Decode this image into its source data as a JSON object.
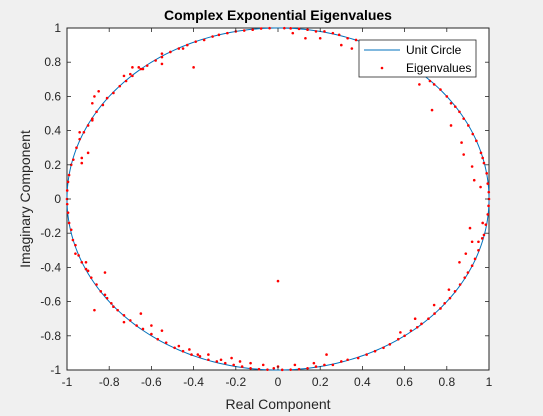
{
  "chart_data": {
    "type": "scatter",
    "title": "Complex Exponential Eigenvalues",
    "xlabel": "Real Component",
    "ylabel": "Imaginary Component",
    "xlim": [
      -1,
      1
    ],
    "ylim": [
      -1,
      1
    ],
    "xticks": [
      -1,
      -0.8,
      -0.6,
      -0.4,
      -0.2,
      0,
      0.2,
      0.4,
      0.6,
      0.8,
      1
    ],
    "yticks": [
      -1,
      -0.8,
      -0.6,
      -0.4,
      -0.2,
      0,
      0.2,
      0.4,
      0.6,
      0.8,
      1
    ],
    "xtick_labels": [
      "-1",
      "-0.8",
      "-0.6",
      "-0.4",
      "-0.2",
      "0",
      "0.2",
      "0.4",
      "0.6",
      "0.8",
      "1"
    ],
    "ytick_labels": [
      "-1",
      "-0.8",
      "-0.6",
      "-0.4",
      "-0.2",
      "0",
      "0.2",
      "0.4",
      "0.6",
      "0.8",
      "1"
    ],
    "grid": false,
    "legend_position": "top-right",
    "series": [
      {
        "name": "Unit Circle",
        "kind": "line",
        "color": "#0072BD",
        "function": "unit circle x=cos(t), y=sin(t)"
      },
      {
        "name": "Eigenvalues",
        "kind": "scatter",
        "color": "#FF0000",
        "points": [
          [
            1.0,
            0.0
          ],
          [
            0.999,
            0.04
          ],
          [
            0.998,
            -0.04
          ],
          [
            0.994,
            0.09
          ],
          [
            0.994,
            -0.09
          ],
          [
            0.989,
            0.15
          ],
          [
            0.985,
            -0.15
          ],
          [
            0.976,
            0.21
          ],
          [
            0.976,
            -0.21
          ],
          [
            0.97,
            0.24
          ],
          [
            0.968,
            -0.23
          ],
          [
            0.962,
            0.27
          ],
          [
            0.95,
            -0.3
          ],
          [
            0.94,
            0.34
          ],
          [
            0.934,
            -0.35
          ],
          [
            0.923,
            0.38
          ],
          [
            0.92,
            -0.39
          ],
          [
            0.902,
            0.43
          ],
          [
            0.9,
            -0.43
          ],
          [
            0.88,
            0.47
          ],
          [
            0.885,
            -0.46
          ],
          [
            0.86,
            0.51
          ],
          [
            0.863,
            -0.5
          ],
          [
            0.84,
            0.54
          ],
          [
            0.839,
            -0.54
          ],
          [
            0.82,
            0.56
          ],
          [
            0.815,
            -0.58
          ],
          [
            0.8,
            0.6
          ],
          [
            0.79,
            -0.61
          ],
          [
            0.77,
            0.64
          ],
          [
            0.77,
            -0.64
          ],
          [
            0.74,
            0.67
          ],
          [
            0.742,
            -0.67
          ],
          [
            0.72,
            0.69
          ],
          [
            0.713,
            -0.7
          ],
          [
            0.69,
            0.72
          ],
          [
            0.68,
            -0.73
          ],
          [
            0.66,
            0.75
          ],
          [
            0.66,
            -0.75
          ],
          [
            0.62,
            0.78
          ],
          [
            0.63,
            -0.77
          ],
          [
            0.59,
            0.81
          ],
          [
            0.6,
            -0.8
          ],
          [
            0.55,
            0.83
          ],
          [
            0.57,
            -0.82
          ],
          [
            0.52,
            0.85
          ],
          [
            0.53,
            -0.85
          ],
          [
            0.48,
            0.88
          ],
          [
            0.5,
            -0.87
          ],
          [
            0.44,
            0.9
          ],
          [
            0.46,
            -0.89
          ],
          [
            0.4,
            0.92
          ],
          [
            0.42,
            -0.91
          ],
          [
            0.37,
            0.93
          ],
          [
            0.38,
            -0.93
          ],
          [
            0.33,
            0.94
          ],
          [
            0.33,
            -0.94
          ],
          [
            0.29,
            0.96
          ],
          [
            0.3,
            -0.95
          ],
          [
            0.26,
            0.97
          ],
          [
            0.26,
            -0.97
          ],
          [
            0.22,
            0.98
          ],
          [
            0.22,
            -0.97
          ],
          [
            0.18,
            0.98
          ],
          [
            0.18,
            -0.98
          ],
          [
            0.14,
            0.99
          ],
          [
            0.14,
            -0.99
          ],
          [
            0.1,
            0.995
          ],
          [
            0.1,
            -0.995
          ],
          [
            0.06,
            0.998
          ],
          [
            0.06,
            -0.998
          ],
          [
            0.03,
            0.999
          ],
          [
            0.02,
            -0.999
          ],
          [
            -1.0,
            0.0
          ],
          [
            -0.999,
            0.05
          ],
          [
            -0.999,
            -0.03
          ],
          [
            -0.995,
            0.1
          ],
          [
            -0.995,
            -0.08
          ],
          [
            -0.99,
            0.14
          ],
          [
            -0.99,
            -0.14
          ],
          [
            -0.98,
            0.2
          ],
          [
            -0.98,
            -0.18
          ],
          [
            -0.97,
            0.23
          ],
          [
            -0.972,
            -0.24
          ],
          [
            -0.955,
            0.3
          ],
          [
            -0.96,
            -0.27
          ],
          [
            -0.94,
            0.35
          ],
          [
            -0.945,
            -0.33
          ],
          [
            -0.92,
            0.39
          ],
          [
            -0.93,
            -0.37
          ],
          [
            -0.9,
            0.43
          ],
          [
            -0.91,
            -0.41
          ],
          [
            -0.88,
            0.47
          ],
          [
            -0.885,
            -0.46
          ],
          [
            -0.86,
            0.51
          ],
          [
            -0.86,
            -0.5
          ],
          [
            -0.83,
            0.55
          ],
          [
            -0.84,
            -0.54
          ],
          [
            -0.81,
            0.59
          ],
          [
            -0.81,
            -0.58
          ],
          [
            -0.78,
            0.62
          ],
          [
            -0.79,
            -0.61
          ],
          [
            -0.75,
            0.66
          ],
          [
            -0.76,
            -0.65
          ],
          [
            -0.72,
            0.69
          ],
          [
            -0.73,
            -0.68
          ],
          [
            -0.69,
            0.72
          ],
          [
            -0.7,
            -0.71
          ],
          [
            -0.65,
            0.76
          ],
          [
            -0.67,
            -0.74
          ],
          [
            -0.62,
            0.78
          ],
          [
            -0.64,
            -0.76
          ],
          [
            -0.58,
            0.81
          ],
          [
            -0.6,
            -0.79
          ],
          [
            -0.55,
            0.83
          ],
          [
            -0.57,
            -0.82
          ],
          [
            -0.51,
            0.86
          ],
          [
            -0.53,
            -0.84
          ],
          [
            -0.47,
            0.88
          ],
          [
            -0.49,
            -0.87
          ],
          [
            -0.43,
            0.9
          ],
          [
            -0.45,
            -0.89
          ],
          [
            -0.39,
            0.92
          ],
          [
            -0.41,
            -0.91
          ],
          [
            -0.35,
            0.93
          ],
          [
            -0.37,
            -0.92
          ],
          [
            -0.31,
            0.95
          ],
          [
            -0.33,
            -0.94
          ],
          [
            -0.28,
            0.96
          ],
          [
            -0.29,
            -0.95
          ],
          [
            -0.24,
            0.97
          ],
          [
            -0.25,
            -0.96
          ],
          [
            -0.2,
            0.98
          ],
          [
            -0.21,
            -0.97
          ],
          [
            -0.16,
            0.985
          ],
          [
            -0.17,
            -0.98
          ],
          [
            -0.12,
            0.99
          ],
          [
            -0.13,
            -0.99
          ],
          [
            -0.08,
            0.997
          ],
          [
            -0.09,
            -0.995
          ],
          [
            -0.04,
            0.999
          ],
          [
            -0.05,
            -0.998
          ],
          [
            -0.94,
            0.39
          ],
          [
            -0.93,
            0.24
          ],
          [
            -0.96,
            -0.32
          ],
          [
            -0.91,
            -0.37
          ],
          [
            -0.88,
            0.56
          ],
          [
            -0.87,
            0.6
          ],
          [
            -0.85,
            0.63
          ],
          [
            -0.87,
            -0.65
          ],
          [
            -0.88,
            0.46
          ],
          [
            -0.9,
            0.27
          ],
          [
            -0.93,
            0.21
          ],
          [
            -0.9,
            -0.42
          ],
          [
            -0.73,
            0.72
          ],
          [
            -0.73,
            -0.72
          ],
          [
            -0.7,
            0.73
          ],
          [
            -0.69,
            0.77
          ],
          [
            -0.66,
            0.77
          ],
          [
            -0.64,
            0.76
          ],
          [
            -0.55,
            0.79
          ],
          [
            -0.55,
            0.85
          ],
          [
            -0.45,
            0.88
          ],
          [
            -0.4,
            0.77
          ],
          [
            -0.82,
            -0.43
          ],
          [
            -0.82,
            -0.56
          ],
          [
            -0.78,
            -0.63
          ],
          [
            -0.65,
            -0.67
          ],
          [
            -0.6,
            -0.74
          ],
          [
            -0.55,
            -0.77
          ],
          [
            -0.47,
            -0.86
          ],
          [
            -0.42,
            -0.88
          ],
          [
            -0.38,
            -0.91
          ],
          [
            -0.33,
            -0.91
          ],
          [
            -0.27,
            -0.94
          ],
          [
            -0.22,
            -0.93
          ],
          [
            -0.18,
            -0.95
          ],
          [
            -0.13,
            -0.96
          ],
          [
            -0.07,
            -0.97
          ],
          [
            -0.02,
            -0.99
          ],
          [
            0.73,
            0.52
          ],
          [
            0.74,
            -0.62
          ],
          [
            0.58,
            -0.78
          ],
          [
            0.58,
            0.76
          ],
          [
            0.42,
            0.86
          ],
          [
            0.48,
            0.82
          ],
          [
            0.82,
            0.43
          ],
          [
            0.81,
            -0.53
          ],
          [
            0.86,
            -0.37
          ],
          [
            0.88,
            0.26
          ],
          [
            0.91,
            -0.17
          ],
          [
            0.93,
            0.11
          ],
          [
            0.95,
            -0.25
          ],
          [
            0.92,
            0.19
          ],
          [
            0.87,
            0.33
          ],
          [
            0.89,
            -0.32
          ],
          [
            0.92,
            -0.25
          ],
          [
            0.96,
            0.07
          ],
          [
            0.97,
            -0.14
          ],
          [
            0.65,
            -0.7
          ],
          [
            0.67,
            0.67
          ],
          [
            0.35,
            0.88
          ],
          [
            0.3,
            0.9
          ],
          [
            0.23,
            -0.91
          ],
          [
            0.17,
            -0.96
          ],
          [
            0.08,
            -0.97
          ],
          [
            0.13,
            0.94
          ],
          [
            0.2,
            0.94
          ],
          [
            0.07,
            0.97
          ],
          [
            0.0,
            -0.98
          ],
          [
            0.0,
            -0.48
          ]
        ]
      }
    ]
  }
}
